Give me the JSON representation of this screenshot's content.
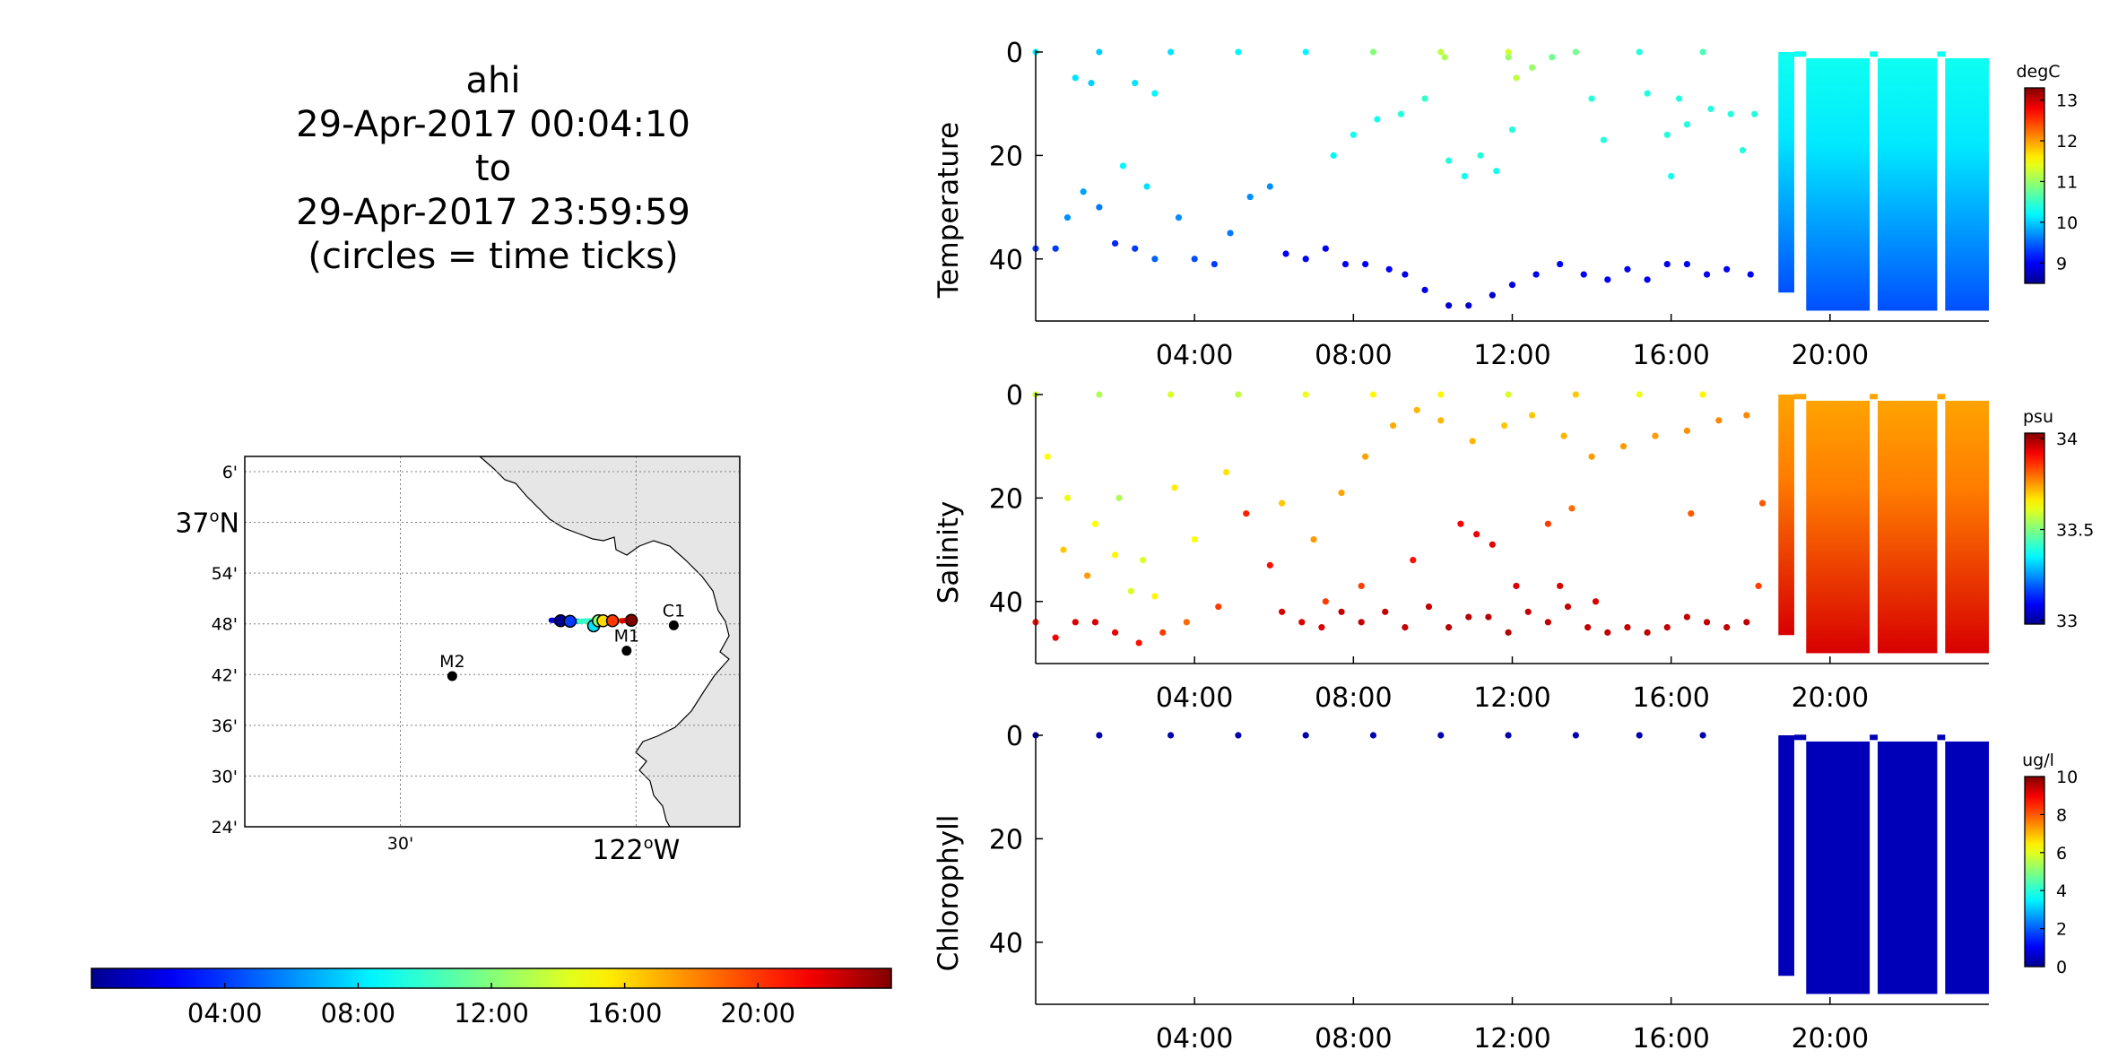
{
  "title": {
    "lines": [
      "ahi",
      "29-Apr-2017 00:04:10",
      "to",
      "29-Apr-2017 23:59:59",
      "(circles = time ticks)"
    ]
  },
  "colors": {
    "jet": [
      "#00008f",
      "#0000ff",
      "#00ffff",
      "#ffff00",
      "#ff0000",
      "#800000"
    ],
    "land": "#e6e6e6",
    "axis": "#000000",
    "grid": "#7f7f7f",
    "cast_marker": "#0a0ab0"
  },
  "map": {
    "lon_range": [
      -122.83,
      -121.78
    ],
    "lat_range": [
      36.4,
      37.13
    ],
    "lat_ticks": [
      {
        "value": 37.1,
        "label": "6'",
        "major": false
      },
      {
        "value": 37.0,
        "label": "37",
        "major": true
      },
      {
        "value": 36.9,
        "label": "54'",
        "major": false
      },
      {
        "value": 36.8,
        "label": "48'",
        "major": false
      },
      {
        "value": 36.7,
        "label": "42'",
        "major": false
      },
      {
        "value": 36.6,
        "label": "36'",
        "major": false
      },
      {
        "value": 36.5,
        "label": "30'",
        "major": false
      },
      {
        "value": 36.4,
        "label": "24'",
        "major": false
      }
    ],
    "lon_ticks": [
      {
        "value": -122.5,
        "label": "30'",
        "major": false
      },
      {
        "value": -122.0,
        "label": "122",
        "major": true
      }
    ],
    "major_lat_suffix": "N",
    "major_lon_suffix": "W",
    "degree_symbol": "o",
    "stations": [
      {
        "name": "C1",
        "lon": -121.92,
        "lat": 36.797
      },
      {
        "name": "M1",
        "lon": -122.02,
        "lat": 36.747
      },
      {
        "name": "M2",
        "lon": -122.39,
        "lat": 36.697
      }
    ],
    "track": {
      "lon": [
        -122.18,
        -122.15,
        -122.12,
        -122.09,
        -122.06,
        -122.03,
        -122.01
      ],
      "lat": [
        36.807,
        36.806,
        36.805,
        36.806,
        36.807,
        36.806,
        36.808
      ],
      "hours": [
        0,
        4,
        8,
        12,
        16,
        20,
        24
      ]
    },
    "time_tick_circles": [
      {
        "lon": -122.16,
        "lat": 36.806
      },
      {
        "lon": -122.14,
        "lat": 36.805
      },
      {
        "lon": -122.09,
        "lat": 36.796
      },
      {
        "lon": -122.08,
        "lat": 36.806
      },
      {
        "lon": -122.07,
        "lat": 36.806
      },
      {
        "lon": -122.05,
        "lat": 36.806
      },
      {
        "lon": -122.01,
        "lat": 36.807
      }
    ]
  },
  "time_colorbar": {
    "ticks": [
      {
        "hour": 4,
        "label": "04:00"
      },
      {
        "hour": 8,
        "label": "08:00"
      },
      {
        "hour": 12,
        "label": "12:00"
      },
      {
        "hour": 16,
        "label": "16:00"
      },
      {
        "hour": 20,
        "label": "20:00"
      }
    ],
    "range_hours": [
      0,
      24
    ]
  },
  "chart_data": [
    {
      "type": "scatter",
      "ylabel": "Temperature",
      "units": "degC",
      "x_range_hours": [
        0,
        24
      ],
      "xticks": [
        {
          "hour": 4,
          "label": "04:00"
        },
        {
          "hour": 8,
          "label": "08:00"
        },
        {
          "hour": 12,
          "label": "12:00"
        },
        {
          "hour": 16,
          "label": "16:00"
        },
        {
          "hour": 20,
          "label": "20:00"
        }
      ],
      "y_range": [
        0,
        52
      ],
      "yticks": [
        0,
        20,
        40
      ],
      "y_reversed": true,
      "c_range": [
        8.5,
        13.3
      ],
      "cticks": [
        9,
        10,
        11,
        12,
        13
      ],
      "cticklabels": [
        "9",
        "10",
        "11",
        "12",
        "13"
      ],
      "surface_points": [
        [
          0.0,
          0,
          10.2
        ],
        [
          1.6,
          0,
          10.0
        ],
        [
          3.4,
          0,
          10.1
        ],
        [
          5.1,
          0,
          10.2
        ],
        [
          6.8,
          0,
          10.2
        ],
        [
          8.5,
          0,
          10.9
        ],
        [
          10.2,
          0,
          11.2
        ],
        [
          11.9,
          0,
          11.3
        ],
        [
          13.6,
          0,
          10.8
        ],
        [
          15.2,
          0,
          10.4
        ],
        [
          16.8,
          0,
          10.6
        ]
      ],
      "shallow_points": [
        [
          1.0,
          5,
          10.1
        ],
        [
          1.4,
          6,
          10.0
        ],
        [
          2.5,
          6,
          10.1
        ],
        [
          3.0,
          8,
          10.2
        ],
        [
          10.3,
          1,
          11.1
        ],
        [
          11.9,
          1,
          11.0
        ],
        [
          12.1,
          5,
          11.2
        ],
        [
          12.5,
          3,
          11.0
        ],
        [
          13.0,
          1,
          10.8
        ],
        [
          14.0,
          9,
          10.4
        ],
        [
          15.4,
          8,
          10.4
        ],
        [
          16.2,
          9,
          10.4
        ],
        [
          17.0,
          11,
          10.4
        ],
        [
          17.5,
          12,
          10.4
        ],
        [
          18.1,
          12,
          10.4
        ]
      ],
      "mid_points": [
        [
          7.5,
          20,
          10.2
        ],
        [
          8.0,
          16,
          10.3
        ],
        [
          8.6,
          13,
          10.3
        ],
        [
          9.2,
          12,
          10.4
        ],
        [
          9.8,
          9,
          10.5
        ],
        [
          10.4,
          21,
          10.4
        ],
        [
          10.8,
          24,
          10.3
        ],
        [
          11.2,
          20,
          10.4
        ],
        [
          11.6,
          23,
          10.3
        ],
        [
          12.0,
          15,
          10.4
        ],
        [
          14.3,
          17,
          10.4
        ],
        [
          15.9,
          16,
          10.4
        ],
        [
          16.4,
          14,
          10.4
        ],
        [
          17.8,
          19,
          10.4
        ],
        [
          2.2,
          22,
          10.2
        ],
        [
          2.8,
          26,
          10.1
        ],
        [
          16.0,
          24,
          10.3
        ]
      ],
      "deep_points": [
        [
          0.0,
          38,
          9.3
        ],
        [
          0.5,
          38,
          9.3
        ],
        [
          0.8,
          32,
          9.7
        ],
        [
          1.2,
          27,
          9.8
        ],
        [
          1.6,
          30,
          9.6
        ],
        [
          2.0,
          37,
          9.2
        ],
        [
          2.5,
          38,
          9.3
        ],
        [
          3.0,
          40,
          9.5
        ],
        [
          3.6,
          32,
          9.7
        ],
        [
          4.0,
          40,
          9.4
        ],
        [
          4.5,
          41,
          9.3
        ],
        [
          4.9,
          35,
          9.6
        ],
        [
          5.4,
          28,
          9.7
        ],
        [
          5.9,
          26,
          9.7
        ],
        [
          6.3,
          39,
          9.0
        ],
        [
          6.8,
          40,
          9.0
        ],
        [
          7.3,
          38,
          9.0
        ],
        [
          7.8,
          41,
          9.0
        ],
        [
          8.3,
          41,
          9.0
        ],
        [
          8.9,
          42,
          9.0
        ],
        [
          9.3,
          43,
          8.9
        ],
        [
          9.8,
          46,
          8.9
        ],
        [
          10.4,
          49,
          8.8
        ],
        [
          10.9,
          49,
          8.8
        ],
        [
          11.5,
          47,
          8.8
        ],
        [
          12.0,
          45,
          8.9
        ],
        [
          12.6,
          43,
          9.0
        ],
        [
          13.2,
          41,
          9.0
        ],
        [
          13.8,
          43,
          9.0
        ],
        [
          14.4,
          44,
          9.0
        ],
        [
          14.9,
          42,
          9.0
        ],
        [
          15.4,
          44,
          9.0
        ],
        [
          15.9,
          41,
          9.0
        ],
        [
          16.4,
          41,
          9.0
        ],
        [
          16.9,
          43,
          9.0
        ],
        [
          17.4,
          42,
          9.0
        ],
        [
          18.0,
          43,
          9.0
        ]
      ],
      "profiler": {
        "hours_start": 18.7,
        "hours_end": 24.0,
        "gaps": [
          [
            19.1,
            19.4
          ],
          [
            21.0,
            21.2
          ],
          [
            22.7,
            22.9
          ]
        ],
        "surface_value": 10.3,
        "bottom_value": 9.4,
        "max_depth": 50
      }
    },
    {
      "type": "scatter",
      "ylabel": "Salinity",
      "units": "psu",
      "x_range_hours": [
        0,
        24
      ],
      "xticks": [
        {
          "hour": 4,
          "label": "04:00"
        },
        {
          "hour": 8,
          "label": "08:00"
        },
        {
          "hour": 12,
          "label": "12:00"
        },
        {
          "hour": 16,
          "label": "16:00"
        },
        {
          "hour": 20,
          "label": "20:00"
        }
      ],
      "y_range": [
        0,
        52
      ],
      "yticks": [
        0,
        20,
        40
      ],
      "y_reversed": true,
      "c_range": [
        32.98,
        34.03
      ],
      "cticks": [
        33,
        33.5,
        34
      ],
      "cticklabels": [
        "33",
        "33.5",
        "34"
      ],
      "surface_points": [
        [
          0.0,
          0,
          33.58
        ],
        [
          1.6,
          0,
          33.55
        ],
        [
          3.4,
          0,
          33.6
        ],
        [
          5.1,
          0,
          33.57
        ],
        [
          6.8,
          0,
          33.62
        ],
        [
          8.5,
          0,
          33.65
        ],
        [
          10.2,
          0,
          33.65
        ],
        [
          11.9,
          0,
          33.6
        ],
        [
          13.6,
          0,
          33.7
        ],
        [
          15.2,
          0,
          33.62
        ],
        [
          16.8,
          0,
          33.65
        ]
      ],
      "shallow_points": [
        [
          0.3,
          12,
          33.64
        ],
        [
          0.8,
          20,
          33.62
        ],
        [
          1.5,
          25,
          33.64
        ],
        [
          2.1,
          20,
          33.55
        ],
        [
          2.7,
          32,
          33.6
        ],
        [
          3.5,
          18,
          33.66
        ],
        [
          4.0,
          28,
          33.64
        ],
        [
          4.8,
          15,
          33.67
        ],
        [
          6.2,
          21,
          33.7
        ],
        [
          7.0,
          28,
          33.75
        ],
        [
          7.7,
          19,
          33.74
        ],
        [
          8.3,
          12,
          33.74
        ],
        [
          9.0,
          6,
          33.73
        ],
        [
          9.6,
          3,
          33.72
        ],
        [
          10.2,
          5,
          33.72
        ],
        [
          11.0,
          9,
          33.72
        ],
        [
          11.8,
          6,
          33.7
        ],
        [
          12.5,
          4,
          33.7
        ],
        [
          13.3,
          8,
          33.72
        ],
        [
          14.0,
          12,
          33.75
        ],
        [
          14.8,
          10,
          33.75
        ],
        [
          15.6,
          8,
          33.75
        ],
        [
          16.4,
          7,
          33.76
        ],
        [
          17.2,
          5,
          33.77
        ],
        [
          17.9,
          4,
          33.77
        ],
        [
          18.3,
          21,
          33.82
        ],
        [
          16.5,
          23,
          33.82
        ],
        [
          13.5,
          22,
          33.8
        ]
      ],
      "mid_points": [
        [
          0.7,
          30,
          33.7
        ],
        [
          1.3,
          35,
          33.75
        ],
        [
          2.0,
          31,
          33.65
        ],
        [
          2.4,
          38,
          33.6
        ],
        [
          3.0,
          39,
          33.65
        ],
        [
          4.6,
          41,
          33.85
        ],
        [
          5.3,
          23,
          33.88
        ],
        [
          5.9,
          33,
          33.9
        ],
        [
          10.7,
          25,
          33.92
        ],
        [
          11.1,
          27,
          33.93
        ],
        [
          11.5,
          29,
          33.94
        ],
        [
          12.9,
          25,
          33.85
        ],
        [
          7.3,
          40,
          33.85
        ],
        [
          8.2,
          37,
          33.85
        ],
        [
          9.5,
          32,
          33.9
        ],
        [
          12.1,
          37,
          33.95
        ],
        [
          13.2,
          37,
          33.95
        ],
        [
          14.1,
          40,
          33.95
        ]
      ],
      "deep_points": [
        [
          0.0,
          44,
          33.9
        ],
        [
          0.5,
          47,
          33.92
        ],
        [
          1.0,
          44,
          33.95
        ],
        [
          1.5,
          44,
          33.95
        ],
        [
          2.0,
          46,
          33.93
        ],
        [
          2.6,
          48,
          33.9
        ],
        [
          3.2,
          46,
          33.85
        ],
        [
          3.8,
          44,
          33.8
        ],
        [
          6.2,
          42,
          33.95
        ],
        [
          6.7,
          44,
          33.95
        ],
        [
          7.2,
          45,
          33.95
        ],
        [
          7.7,
          42,
          33.97
        ],
        [
          8.2,
          44,
          33.97
        ],
        [
          8.8,
          42,
          33.97
        ],
        [
          9.3,
          45,
          33.97
        ],
        [
          9.9,
          41,
          33.97
        ],
        [
          10.4,
          45,
          33.98
        ],
        [
          10.9,
          43,
          33.98
        ],
        [
          11.4,
          43,
          33.98
        ],
        [
          11.9,
          46,
          33.98
        ],
        [
          12.4,
          42,
          33.97
        ],
        [
          12.9,
          44,
          33.97
        ],
        [
          13.4,
          41,
          33.97
        ],
        [
          13.9,
          45,
          33.97
        ],
        [
          14.4,
          46,
          33.97
        ],
        [
          14.9,
          45,
          33.97
        ],
        [
          15.4,
          46,
          33.97
        ],
        [
          15.9,
          45,
          33.97
        ],
        [
          16.4,
          43,
          33.97
        ],
        [
          16.9,
          44,
          33.97
        ],
        [
          17.4,
          45,
          33.97
        ],
        [
          17.9,
          44,
          33.97
        ],
        [
          18.2,
          37,
          33.85
        ]
      ],
      "profiler": {
        "hours_start": 18.7,
        "hours_end": 24.0,
        "gaps": [
          [
            19.1,
            19.4
          ],
          [
            21.0,
            21.2
          ],
          [
            22.7,
            22.9
          ]
        ],
        "surface_value": 33.74,
        "bottom_value": 33.95,
        "max_depth": 50
      }
    },
    {
      "type": "scatter",
      "ylabel": "Chlorophyll",
      "units": "ug/l",
      "x_range_hours": [
        0,
        24
      ],
      "xticks": [
        {
          "hour": 4,
          "label": "04:00"
        },
        {
          "hour": 8,
          "label": "08:00"
        },
        {
          "hour": 12,
          "label": "12:00"
        },
        {
          "hour": 16,
          "label": "16:00"
        },
        {
          "hour": 20,
          "label": "20:00"
        }
      ],
      "y_range": [
        0,
        52
      ],
      "yticks": [
        0,
        20,
        40
      ],
      "y_reversed": true,
      "c_range": [
        0,
        10
      ],
      "cticks": [
        0,
        2,
        4,
        6,
        8,
        10
      ],
      "cticklabels": [
        "0",
        "2",
        "4",
        "6",
        "8",
        "10"
      ],
      "surface_points": [
        [
          0.0,
          0,
          0.3
        ],
        [
          1.6,
          0,
          0.3
        ],
        [
          3.4,
          0,
          0.3
        ],
        [
          5.1,
          0,
          0.3
        ],
        [
          6.8,
          0,
          0.3
        ],
        [
          8.5,
          0,
          0.3
        ],
        [
          10.2,
          0,
          0.3
        ],
        [
          11.9,
          0,
          0.3
        ],
        [
          13.6,
          0,
          0.3
        ],
        [
          15.2,
          0,
          0.3
        ],
        [
          16.8,
          0,
          0.3
        ]
      ],
      "shallow_points": [],
      "mid_points": [],
      "deep_points": [],
      "profiler": {
        "hours_start": 18.7,
        "hours_end": 24.0,
        "gaps": [
          [
            19.1,
            19.4
          ],
          [
            21.0,
            21.2
          ],
          [
            22.7,
            22.9
          ]
        ],
        "surface_value": 0.4,
        "bottom_value": 0.4,
        "max_depth": 50
      }
    }
  ]
}
